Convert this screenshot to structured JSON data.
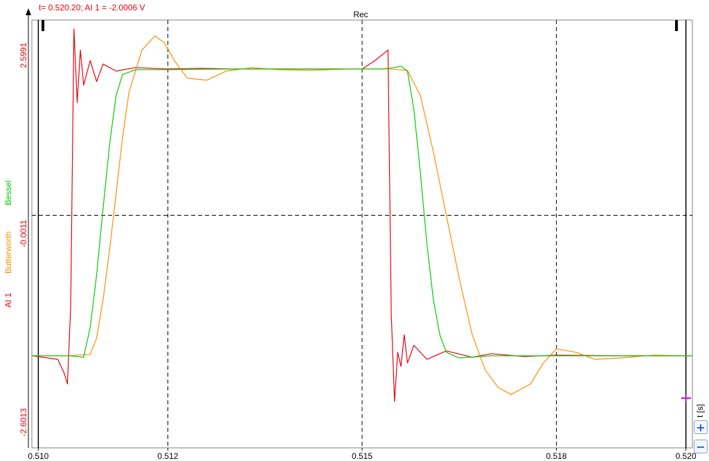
{
  "readout": {
    "text": "t= 0.520.20; AI 1 = -2.0006 V"
  },
  "colors": {
    "ai1": "#e8000b",
    "butterworth": "#ff8c00",
    "bessel": "#00cc00",
    "grid": "#000000",
    "magenta_marker": "#e000e0",
    "accent_blue": "#1f5fbf"
  },
  "side_controls": {
    "time_unit": "t [s]",
    "zoom_in_icon": "+",
    "zoom_out_icon": "−"
  },
  "chart_data": {
    "type": "line",
    "title": "Rec",
    "x_ticks": [
      "0.510",
      "0.512",
      "0.515",
      "0.518",
      "0.520"
    ],
    "x_tick_values": [
      0.51,
      0.512,
      0.515,
      0.518,
      0.52
    ],
    "xlim": [
      0.5099,
      0.5201
    ],
    "xlabel": "t [s]",
    "y_ticks": [
      "2.5991",
      "-0.0011",
      "-2.6013"
    ],
    "y_tick_values": [
      2.5991,
      -0.0011,
      -2.6013
    ],
    "ylim": [
      -2.6013,
      2.5991
    ],
    "y_axis_labels": [
      "AI 1",
      "Butterworth",
      "Bessel"
    ],
    "grid": "dashed",
    "series": [
      {
        "name": "AI 1",
        "color": "#e8000b",
        "x": [
          0.5099,
          0.5103,
          0.5104,
          0.51045,
          0.5105,
          0.51055,
          0.5106,
          0.51065,
          0.5107,
          0.5108,
          0.5109,
          0.511,
          0.5112,
          0.5115,
          0.512,
          0.5125,
          0.513,
          0.514,
          0.515,
          0.5152,
          0.5154,
          0.51545,
          0.5155,
          0.51555,
          0.5156,
          0.51565,
          0.5157,
          0.5158,
          0.516,
          0.5163,
          0.5167,
          0.517,
          0.5175,
          0.518,
          0.519,
          0.5201
        ],
        "y": [
          -2.0,
          -2.05,
          -2.25,
          -2.4,
          -1.3,
          2.65,
          1.6,
          2.35,
          1.85,
          2.2,
          1.9,
          2.15,
          2.05,
          2.1,
          2.08,
          2.09,
          2.08,
          2.08,
          2.08,
          2.2,
          2.35,
          -1.4,
          -2.65,
          -1.95,
          -2.15,
          -1.7,
          -2.1,
          -1.85,
          -2.05,
          -1.93,
          -2.02,
          -1.97,
          -2.01,
          -1.99,
          -2.0,
          -2.0
        ]
      },
      {
        "name": "Butterworth",
        "color": "#ff8c00",
        "x": [
          0.5099,
          0.5104,
          0.5108,
          0.5109,
          0.511,
          0.5111,
          0.5112,
          0.5113,
          0.5114,
          0.5116,
          0.5118,
          0.51195,
          0.5121,
          0.5123,
          0.5126,
          0.5129,
          0.5133,
          0.5137,
          0.5142,
          0.5148,
          0.5154,
          0.5157,
          0.5159,
          0.5161,
          0.5163,
          0.5165,
          0.5167,
          0.5169,
          0.5171,
          0.5173,
          0.5176,
          0.5178,
          0.518,
          0.5183,
          0.5186,
          0.519,
          0.5195,
          0.5201
        ],
        "y": [
          -2.0,
          -2.0,
          -1.98,
          -1.75,
          -1.2,
          -0.5,
          0.3,
          1.1,
          1.75,
          2.35,
          2.55,
          2.45,
          2.2,
          1.95,
          1.92,
          2.05,
          2.1,
          2.07,
          2.06,
          2.08,
          2.08,
          2.06,
          1.7,
          0.9,
          0.0,
          -0.9,
          -1.7,
          -2.2,
          -2.45,
          -2.55,
          -2.4,
          -2.1,
          -1.9,
          -1.95,
          -2.05,
          -2.03,
          -1.99,
          -2.0
        ]
      },
      {
        "name": "Bessel",
        "color": "#00cc00",
        "x": [
          0.5099,
          0.5105,
          0.5107,
          0.5108,
          0.5109,
          0.511,
          0.5111,
          0.5112,
          0.5113,
          0.5115,
          0.512,
          0.513,
          0.514,
          0.515,
          0.5153,
          0.5155,
          0.5156,
          0.5157,
          0.5158,
          0.5159,
          0.516,
          0.5161,
          0.5162,
          0.5163,
          0.5165,
          0.517,
          0.518,
          0.519,
          0.5201
        ],
        "y": [
          -2.0,
          -2.0,
          -2.02,
          -1.6,
          -0.85,
          0.1,
          1.0,
          1.7,
          2.0,
          2.07,
          2.07,
          2.08,
          2.08,
          2.08,
          2.08,
          2.1,
          2.12,
          2.05,
          1.5,
          0.6,
          -0.4,
          -1.2,
          -1.7,
          -1.95,
          -2.03,
          -2.0,
          -2.0,
          -2.0,
          -2.0
        ]
      }
    ]
  }
}
